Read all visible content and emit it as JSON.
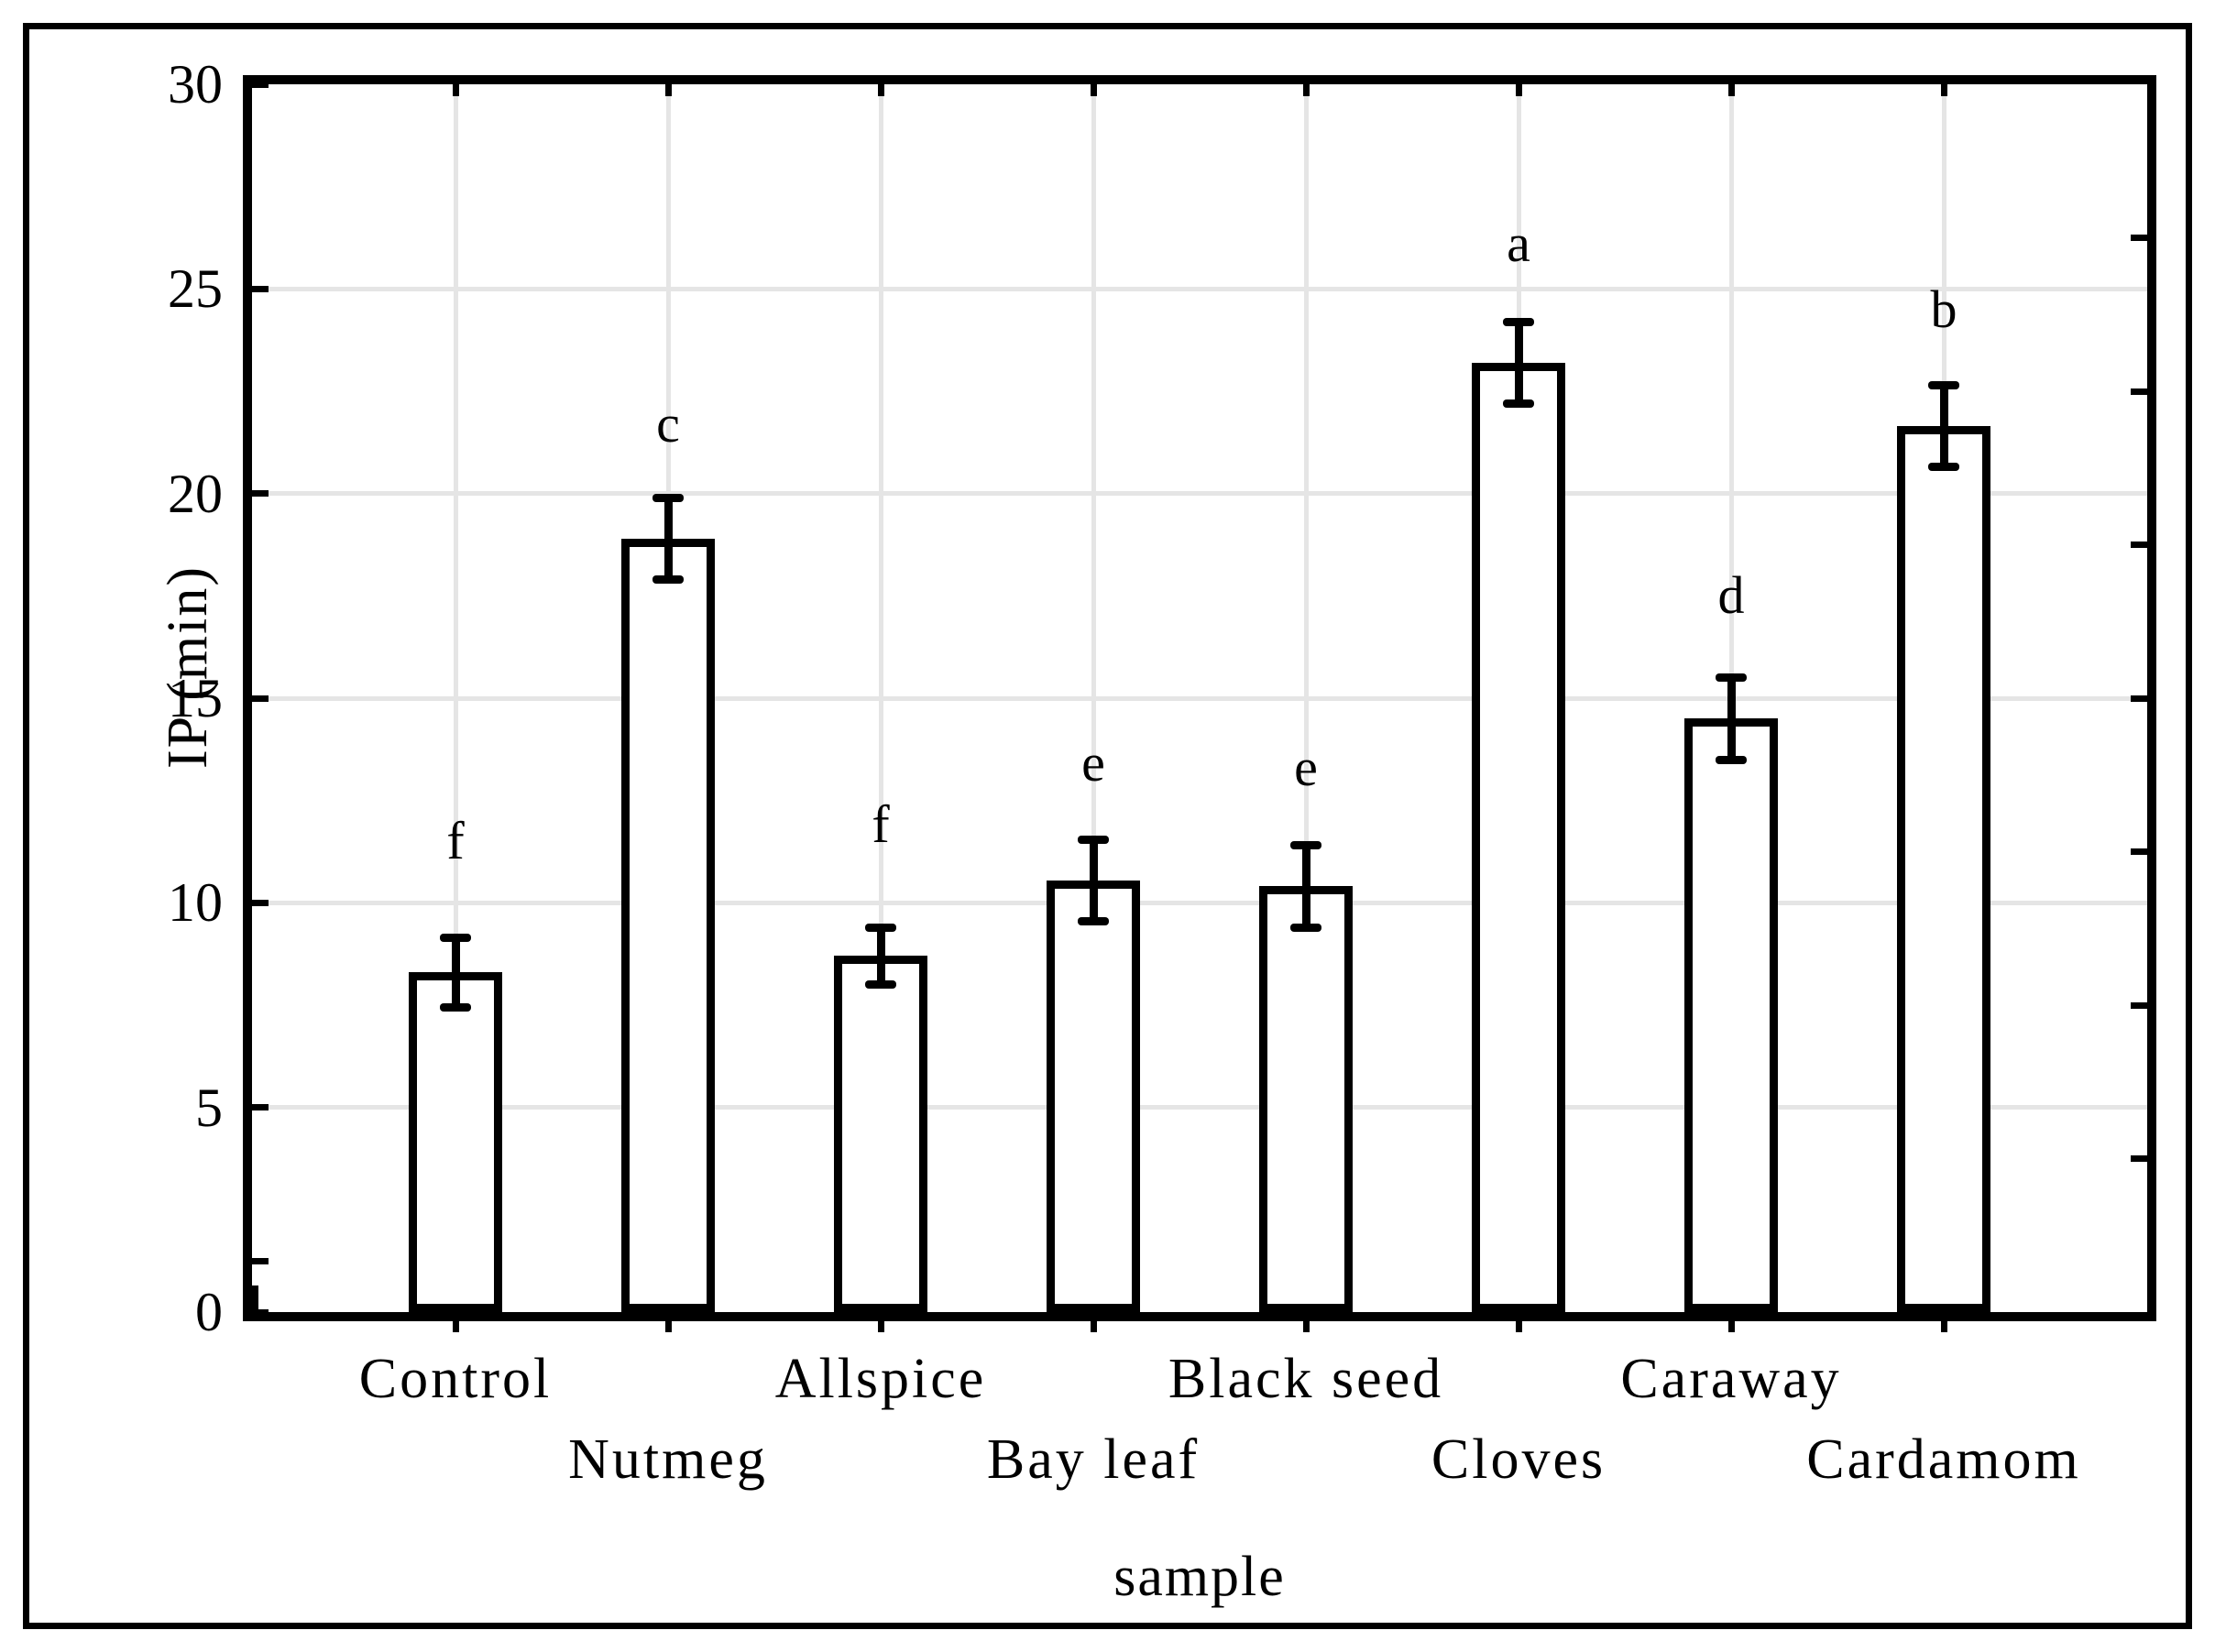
{
  "figure": {
    "background_color": "#ffffff",
    "border_color": "#000000",
    "grid_color": "#e5e5e5",
    "ink_color": "#000000"
  },
  "chart_data": {
    "type": "bar",
    "title": "",
    "xlabel": "sample",
    "ylabel": "IP (min)",
    "ylim": [
      0,
      30
    ],
    "yticks": [
      0,
      5,
      10,
      15,
      20,
      25,
      30
    ],
    "ytick_labels": [
      "0",
      "5",
      "10",
      "15",
      "20",
      "25",
      "30"
    ],
    "y_minor_tick": 1.25,
    "right_axis_ticks": [
      3.75,
      7.5,
      11.25,
      15,
      18.75,
      22.5,
      26.25
    ],
    "grid": "both",
    "legend": "none",
    "bar_fill": "#ffffff",
    "bar_edge": "#000000",
    "categories": [
      "Control",
      "Nutmeg",
      "Allspice",
      "Bay leaf",
      "Black seed",
      "Cloves",
      "Caraway",
      "Cardamom"
    ],
    "label_row": [
      1,
      2,
      1,
      2,
      1,
      2,
      1,
      2
    ],
    "values": [
      8.3,
      18.9,
      8.7,
      10.55,
      10.4,
      23.2,
      14.5,
      21.65
    ],
    "errors": [
      0.85,
      1.0,
      0.7,
      1.0,
      1.0,
      1.0,
      1.0,
      1.0
    ],
    "sig_letters": [
      "f",
      "c",
      "f",
      "e",
      "e",
      "a",
      "d",
      "b"
    ],
    "sig_letter_y": [
      11.5,
      21.7,
      11.9,
      13.4,
      13.3,
      26.1,
      17.5,
      24.5
    ],
    "origin_marker_value": 0.65
  }
}
